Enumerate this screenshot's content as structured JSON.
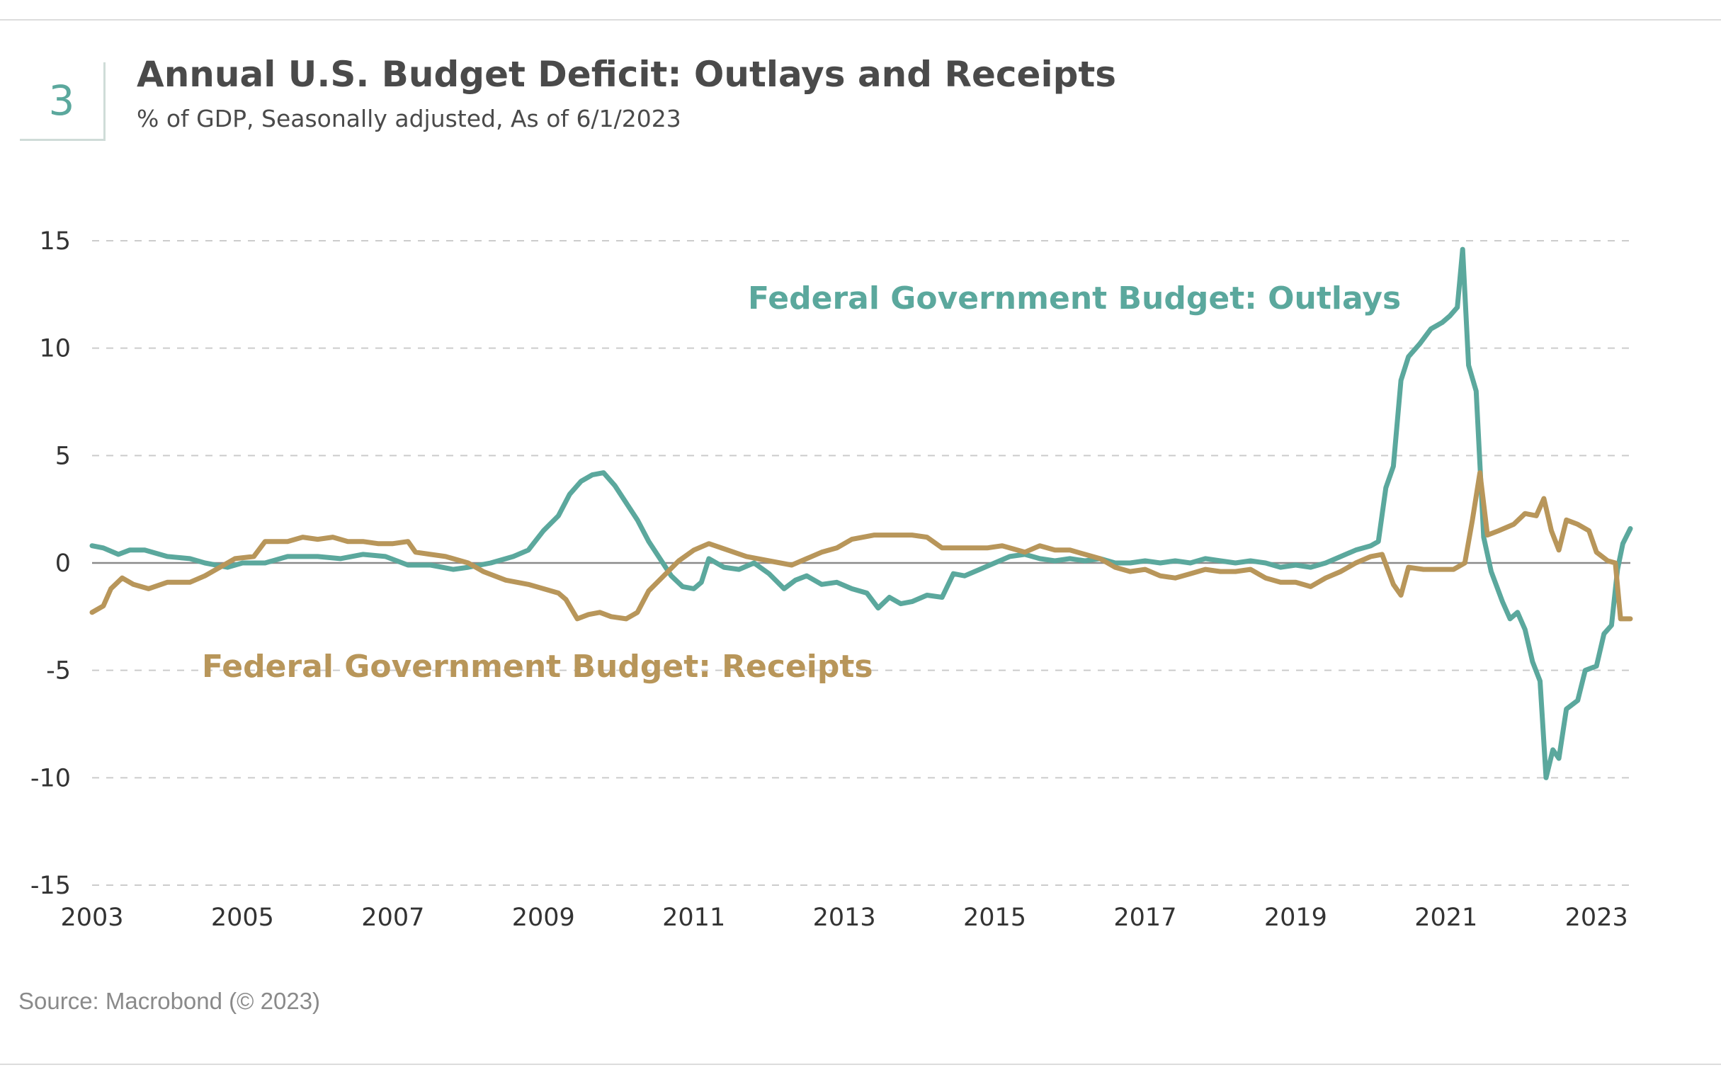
{
  "badge": {
    "number": "3"
  },
  "header": {
    "title": "Annual U.S. Budget Deficit: Outlays and Receipts",
    "subtitle": "% of GDP, Seasonally adjusted, As of 6/1/2023"
  },
  "footer": {
    "source": "Source: Macrobond (© 2023)"
  },
  "colors": {
    "outlays": "#5ba89d",
    "receipts": "#b8965a",
    "zero_line": "#8a8a8a",
    "grid": "#cccccc",
    "accent": "#5ba89d"
  },
  "chart_data": {
    "type": "line",
    "title": "Annual U.S. Budget Deficit: Outlays and Receipts",
    "subtitle": "% of GDP, Seasonally adjusted, As of 6/1/2023",
    "xlabel": "",
    "ylabel": "",
    "xlim": [
      2003,
      2023.45
    ],
    "ylim": [
      -15,
      15
    ],
    "x_ticks": [
      "2003",
      "2005",
      "2007",
      "2009",
      "2011",
      "2013",
      "2015",
      "2017",
      "2019",
      "2021",
      "2023"
    ],
    "y_ticks": [
      "15",
      "10",
      "5",
      "0",
      "-5",
      "-10",
      "-15"
    ],
    "grid": "horizontal dashed",
    "annotations": [
      "Federal Government Budget: Outlays",
      "Federal Government Budget: Receipts"
    ],
    "series": [
      {
        "name": "Federal Government Budget: Outlays",
        "color": "#5ba89d",
        "points": [
          [
            2003.0,
            0.8
          ],
          [
            2003.15,
            0.7
          ],
          [
            2003.35,
            0.4
          ],
          [
            2003.5,
            0.6
          ],
          [
            2003.7,
            0.6
          ],
          [
            2004.0,
            0.3
          ],
          [
            2004.3,
            0.2
          ],
          [
            2004.5,
            0.0
          ],
          [
            2004.8,
            -0.2
          ],
          [
            2005.0,
            0.0
          ],
          [
            2005.3,
            0.0
          ],
          [
            2005.6,
            0.3
          ],
          [
            2006.0,
            0.3
          ],
          [
            2006.3,
            0.2
          ],
          [
            2006.6,
            0.4
          ],
          [
            2006.9,
            0.3
          ],
          [
            2007.2,
            -0.1
          ],
          [
            2007.5,
            -0.1
          ],
          [
            2007.8,
            -0.3
          ],
          [
            2008.0,
            -0.2
          ],
          [
            2008.3,
            0.0
          ],
          [
            2008.6,
            0.3
          ],
          [
            2008.8,
            0.6
          ],
          [
            2009.0,
            1.5
          ],
          [
            2009.2,
            2.2
          ],
          [
            2009.35,
            3.2
          ],
          [
            2009.5,
            3.8
          ],
          [
            2009.65,
            4.1
          ],
          [
            2009.8,
            4.2
          ],
          [
            2009.95,
            3.6
          ],
          [
            2010.1,
            2.8
          ],
          [
            2010.25,
            2.0
          ],
          [
            2010.4,
            1.0
          ],
          [
            2010.55,
            0.2
          ],
          [
            2010.7,
            -0.6
          ],
          [
            2010.85,
            -1.1
          ],
          [
            2011.0,
            -1.2
          ],
          [
            2011.1,
            -0.9
          ],
          [
            2011.2,
            0.2
          ],
          [
            2011.4,
            -0.2
          ],
          [
            2011.6,
            -0.3
          ],
          [
            2011.8,
            0.0
          ],
          [
            2012.0,
            -0.5
          ],
          [
            2012.2,
            -1.2
          ],
          [
            2012.35,
            -0.8
          ],
          [
            2012.5,
            -0.6
          ],
          [
            2012.7,
            -1.0
          ],
          [
            2012.9,
            -0.9
          ],
          [
            2013.1,
            -1.2
          ],
          [
            2013.3,
            -1.4
          ],
          [
            2013.45,
            -2.1
          ],
          [
            2013.6,
            -1.6
          ],
          [
            2013.75,
            -1.9
          ],
          [
            2013.9,
            -1.8
          ],
          [
            2014.1,
            -1.5
          ],
          [
            2014.3,
            -1.6
          ],
          [
            2014.45,
            -0.5
          ],
          [
            2014.6,
            -0.6
          ],
          [
            2014.8,
            -0.3
          ],
          [
            2015.0,
            0.0
          ],
          [
            2015.2,
            0.3
          ],
          [
            2015.4,
            0.4
          ],
          [
            2015.6,
            0.2
          ],
          [
            2015.8,
            0.1
          ],
          [
            2016.0,
            0.2
          ],
          [
            2016.2,
            0.1
          ],
          [
            2016.4,
            0.2
          ],
          [
            2016.6,
            0.0
          ],
          [
            2016.8,
            0.0
          ],
          [
            2017.0,
            0.1
          ],
          [
            2017.2,
            0.0
          ],
          [
            2017.4,
            0.1
          ],
          [
            2017.6,
            0.0
          ],
          [
            2017.8,
            0.2
          ],
          [
            2018.0,
            0.1
          ],
          [
            2018.2,
            0.0
          ],
          [
            2018.4,
            0.1
          ],
          [
            2018.6,
            0.0
          ],
          [
            2018.8,
            -0.2
          ],
          [
            2019.0,
            -0.1
          ],
          [
            2019.2,
            -0.2
          ],
          [
            2019.4,
            0.0
          ],
          [
            2019.6,
            0.3
          ],
          [
            2019.8,
            0.6
          ],
          [
            2020.0,
            0.8
          ],
          [
            2020.1,
            1.0
          ],
          [
            2020.2,
            3.5
          ],
          [
            2020.3,
            4.5
          ],
          [
            2020.4,
            8.5
          ],
          [
            2020.5,
            9.6
          ],
          [
            2020.65,
            10.2
          ],
          [
            2020.8,
            10.9
          ],
          [
            2020.95,
            11.2
          ],
          [
            2021.05,
            11.5
          ],
          [
            2021.15,
            11.9
          ],
          [
            2021.22,
            14.6
          ],
          [
            2021.3,
            9.2
          ],
          [
            2021.4,
            8.0
          ],
          [
            2021.5,
            1.2
          ],
          [
            2021.6,
            -0.4
          ],
          [
            2021.75,
            -1.8
          ],
          [
            2021.85,
            -2.6
          ],
          [
            2021.95,
            -2.3
          ],
          [
            2022.05,
            -3.1
          ],
          [
            2022.15,
            -4.6
          ],
          [
            2022.25,
            -5.5
          ],
          [
            2022.33,
            -10.0
          ],
          [
            2022.42,
            -8.7
          ],
          [
            2022.5,
            -9.1
          ],
          [
            2022.6,
            -6.8
          ],
          [
            2022.75,
            -6.4
          ],
          [
            2022.85,
            -5.0
          ],
          [
            2023.0,
            -4.8
          ],
          [
            2023.1,
            -3.3
          ],
          [
            2023.2,
            -2.9
          ],
          [
            2023.28,
            -0.3
          ],
          [
            2023.35,
            0.9
          ],
          [
            2023.45,
            1.6
          ]
        ]
      },
      {
        "name": "Federal Government Budget: Receipts",
        "color": "#b8965a",
        "points": [
          [
            2003.0,
            -2.3
          ],
          [
            2003.15,
            -2.0
          ],
          [
            2003.25,
            -1.2
          ],
          [
            2003.4,
            -0.7
          ],
          [
            2003.55,
            -1.0
          ],
          [
            2003.75,
            -1.2
          ],
          [
            2004.0,
            -0.9
          ],
          [
            2004.3,
            -0.9
          ],
          [
            2004.5,
            -0.6
          ],
          [
            2004.7,
            -0.2
          ],
          [
            2004.9,
            0.2
          ],
          [
            2005.15,
            0.3
          ],
          [
            2005.3,
            1.0
          ],
          [
            2005.6,
            1.0
          ],
          [
            2005.8,
            1.2
          ],
          [
            2006.0,
            1.1
          ],
          [
            2006.2,
            1.2
          ],
          [
            2006.4,
            1.0
          ],
          [
            2006.6,
            1.0
          ],
          [
            2006.8,
            0.9
          ],
          [
            2007.0,
            0.9
          ],
          [
            2007.2,
            1.0
          ],
          [
            2007.3,
            0.5
          ],
          [
            2007.5,
            0.4
          ],
          [
            2007.7,
            0.3
          ],
          [
            2008.0,
            0.0
          ],
          [
            2008.2,
            -0.4
          ],
          [
            2008.5,
            -0.8
          ],
          [
            2008.8,
            -1.0
          ],
          [
            2009.0,
            -1.2
          ],
          [
            2009.2,
            -1.4
          ],
          [
            2009.3,
            -1.7
          ],
          [
            2009.45,
            -2.6
          ],
          [
            2009.6,
            -2.4
          ],
          [
            2009.75,
            -2.3
          ],
          [
            2009.9,
            -2.5
          ],
          [
            2010.1,
            -2.6
          ],
          [
            2010.25,
            -2.3
          ],
          [
            2010.4,
            -1.3
          ],
          [
            2010.6,
            -0.6
          ],
          [
            2010.8,
            0.1
          ],
          [
            2011.0,
            0.6
          ],
          [
            2011.2,
            0.9
          ],
          [
            2011.45,
            0.6
          ],
          [
            2011.7,
            0.3
          ],
          [
            2012.0,
            0.1
          ],
          [
            2012.3,
            -0.1
          ],
          [
            2012.5,
            0.2
          ],
          [
            2012.7,
            0.5
          ],
          [
            2012.9,
            0.7
          ],
          [
            2013.1,
            1.1
          ],
          [
            2013.4,
            1.3
          ],
          [
            2013.7,
            1.3
          ],
          [
            2013.9,
            1.3
          ],
          [
            2014.1,
            1.2
          ],
          [
            2014.3,
            0.7
          ],
          [
            2014.6,
            0.7
          ],
          [
            2014.9,
            0.7
          ],
          [
            2015.1,
            0.8
          ],
          [
            2015.4,
            0.5
          ],
          [
            2015.6,
            0.8
          ],
          [
            2015.8,
            0.6
          ],
          [
            2016.0,
            0.6
          ],
          [
            2016.2,
            0.4
          ],
          [
            2016.4,
            0.2
          ],
          [
            2016.6,
            -0.2
          ],
          [
            2016.8,
            -0.4
          ],
          [
            2017.0,
            -0.3
          ],
          [
            2017.2,
            -0.6
          ],
          [
            2017.4,
            -0.7
          ],
          [
            2017.6,
            -0.5
          ],
          [
            2017.8,
            -0.3
          ],
          [
            2018.0,
            -0.4
          ],
          [
            2018.2,
            -0.4
          ],
          [
            2018.4,
            -0.3
          ],
          [
            2018.6,
            -0.7
          ],
          [
            2018.8,
            -0.9
          ],
          [
            2019.0,
            -0.9
          ],
          [
            2019.2,
            -1.1
          ],
          [
            2019.4,
            -0.7
          ],
          [
            2019.6,
            -0.4
          ],
          [
            2019.8,
            0.0
          ],
          [
            2020.0,
            0.3
          ],
          [
            2020.15,
            0.4
          ],
          [
            2020.3,
            -1.0
          ],
          [
            2020.4,
            -1.5
          ],
          [
            2020.5,
            -0.2
          ],
          [
            2020.7,
            -0.3
          ],
          [
            2020.9,
            -0.3
          ],
          [
            2021.1,
            -0.3
          ],
          [
            2021.25,
            0.0
          ],
          [
            2021.35,
            2.0
          ],
          [
            2021.45,
            4.2
          ],
          [
            2021.55,
            1.3
          ],
          [
            2021.7,
            1.5
          ],
          [
            2021.9,
            1.8
          ],
          [
            2022.05,
            2.3
          ],
          [
            2022.2,
            2.2
          ],
          [
            2022.3,
            3.0
          ],
          [
            2022.4,
            1.5
          ],
          [
            2022.5,
            0.6
          ],
          [
            2022.6,
            2.0
          ],
          [
            2022.75,
            1.8
          ],
          [
            2022.9,
            1.5
          ],
          [
            2023.0,
            0.5
          ],
          [
            2023.15,
            0.1
          ],
          [
            2023.25,
            0.0
          ],
          [
            2023.32,
            -2.6
          ],
          [
            2023.45,
            -2.6
          ]
        ]
      }
    ]
  }
}
